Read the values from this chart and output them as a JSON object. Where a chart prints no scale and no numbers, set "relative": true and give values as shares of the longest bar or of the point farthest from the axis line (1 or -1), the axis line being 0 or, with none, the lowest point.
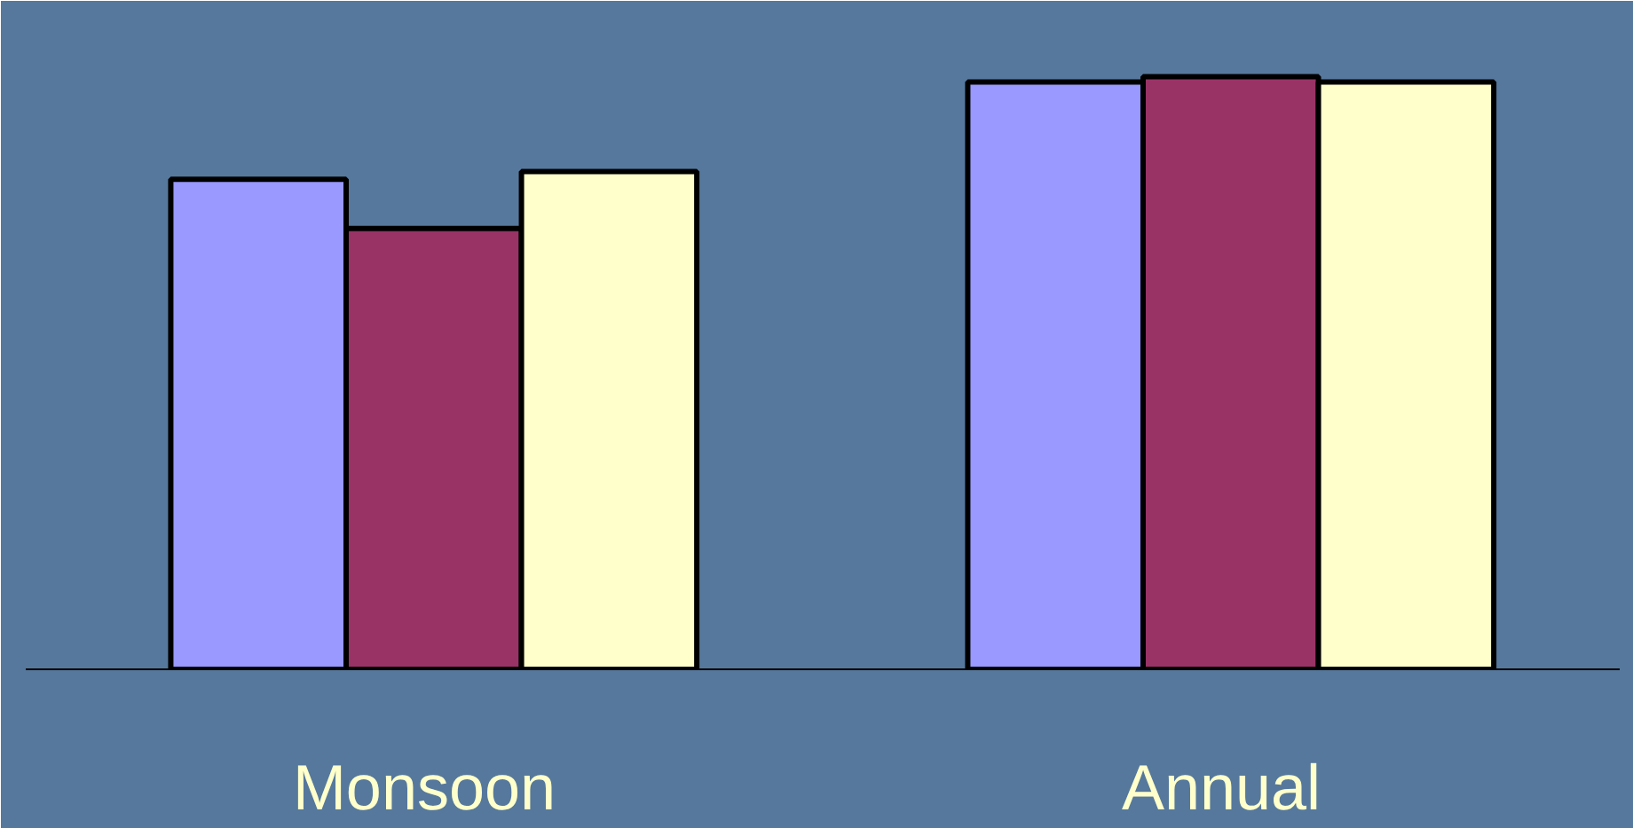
{
  "chart_data": {
    "type": "bar",
    "relative": true,
    "categories": [
      "Monsoon",
      "Annual"
    ],
    "series": [
      {
        "color": "#9999ff",
        "values": [
          0.827,
          0.991
        ]
      },
      {
        "color": "#993366",
        "values": [
          0.744,
          1.0
        ]
      },
      {
        "color": "#ffffcc",
        "values": [
          0.84,
          0.991
        ]
      }
    ]
  }
}
